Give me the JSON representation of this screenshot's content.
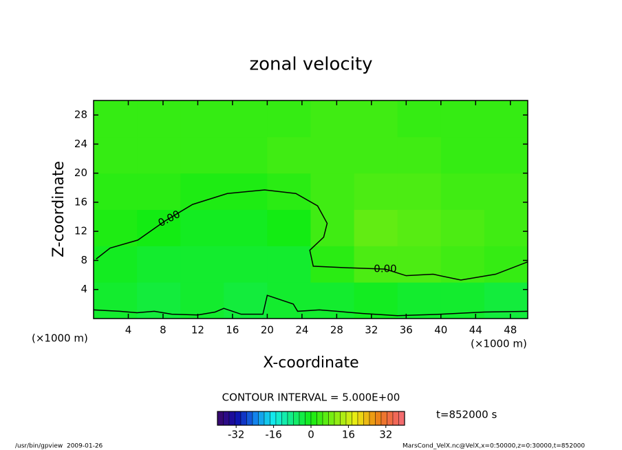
{
  "chart_data": {
    "type": "contour",
    "title": "zonal velocity",
    "x_label": "X-coordinate",
    "y_label": "Z-coordinate",
    "x_unit": "(×1000 m)",
    "y_unit": "(×1000 m)",
    "xlim": [
      0,
      50
    ],
    "ylim": [
      0,
      30
    ],
    "xticks": [
      4,
      8,
      12,
      16,
      20,
      24,
      28,
      32,
      36,
      40,
      44,
      48
    ],
    "yticks": [
      4,
      8,
      12,
      16,
      20,
      24,
      28
    ],
    "field": {
      "x": [
        2.5,
        7.5,
        12.5,
        17.5,
        22.5,
        27.5,
        32.5,
        37.5,
        42.5,
        47.5
      ],
      "z": [
        2.5,
        7.5,
        12.5,
        17.5,
        22.5,
        27.5
      ],
      "values": [
        [
          -2,
          -3,
          -2,
          -3,
          -2,
          -2,
          -1,
          -2,
          -2,
          -3
        ],
        [
          -1,
          -2,
          -2,
          -2,
          -2,
          2,
          5,
          5,
          4,
          3
        ],
        [
          1,
          0,
          -1,
          -1,
          0,
          4,
          7,
          6,
          5,
          4
        ],
        [
          2,
          2,
          1,
          1,
          2,
          4,
          5,
          5,
          4,
          4
        ],
        [
          3,
          3,
          3,
          3,
          4,
          4,
          4,
          4,
          3,
          3
        ],
        [
          3,
          3,
          3,
          3,
          3,
          4,
          4,
          3,
          3,
          3
        ]
      ]
    },
    "contours": [
      {
        "level": 0,
        "label": "0.00",
        "x": [
          0.3,
          1.9,
          5.1,
          8.2,
          11.4,
          15.4,
          19.7,
          23.3,
          25.8,
          26.9,
          26.5,
          24.9,
          25.3,
          28.9,
          33.6,
          36.0,
          39.1,
          42.3,
          46.3,
          50
        ],
        "z": [
          8.2,
          9.7,
          10.8,
          13.4,
          15.7,
          17.2,
          17.7,
          17.2,
          15.5,
          13.1,
          11.2,
          9.4,
          7.2,
          7.0,
          6.8,
          5.9,
          6.1,
          5.3,
          6.1,
          7.8
        ]
      },
      {
        "level": 0,
        "x": [
          0,
          3,
          5,
          7,
          9,
          12,
          14,
          15,
          17,
          19.5,
          20,
          23,
          23.5,
          26,
          28,
          31,
          35,
          40,
          45,
          50
        ],
        "z": [
          1.2,
          1.0,
          0.8,
          1.0,
          0.6,
          0.5,
          0.9,
          1.4,
          0.6,
          0.6,
          3.2,
          2.0,
          1.0,
          1.2,
          1.0,
          0.7,
          0.4,
          0.6,
          0.9,
          1.0
        ]
      }
    ],
    "contour_interval": "CONTOUR INTERVAL = 5.000E+00",
    "time": "t=852000 s",
    "clim": [
      -40,
      40
    ],
    "cticks": [
      -32,
      -16,
      0,
      16,
      32
    ],
    "footer_left": "/usr/bin/gpview  2009-01-26",
    "footer_right": "MarsCond_VelX.nc@VelX,x=0:50000,z=0:30000,t=852000"
  }
}
